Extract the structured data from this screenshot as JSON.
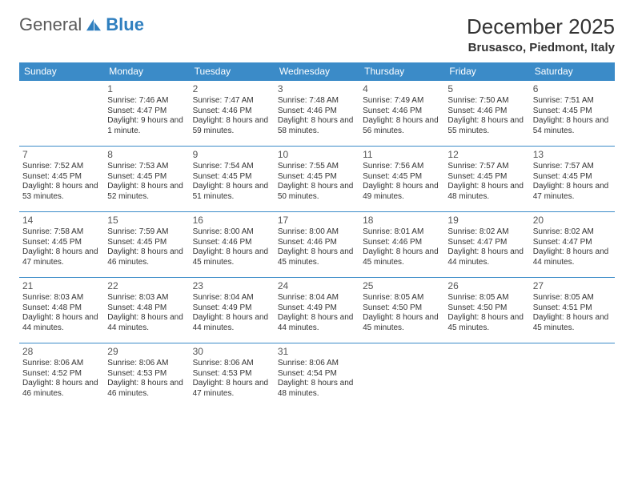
{
  "brand": {
    "text1": "General",
    "text2": "Blue",
    "icon_color": "#2f7fbf"
  },
  "header": {
    "month_title": "December 2025",
    "location": "Brusasco, Piedmont, Italy"
  },
  "style": {
    "header_bg": "#3b8bc8",
    "header_fg": "#ffffff",
    "cell_border": "#3b8bc8",
    "body_fg": "#333333",
    "daynum_fg": "#555555",
    "month_fontsize": 26,
    "location_fontsize": 15,
    "th_fontsize": 12,
    "cell_fontsize": 10
  },
  "days": [
    "Sunday",
    "Monday",
    "Tuesday",
    "Wednesday",
    "Thursday",
    "Friday",
    "Saturday"
  ],
  "weeks": [
    [
      null,
      {
        "n": "1",
        "sr": "Sunrise: 7:46 AM",
        "ss": "Sunset: 4:47 PM",
        "dl": "Daylight: 9 hours and 1 minute."
      },
      {
        "n": "2",
        "sr": "Sunrise: 7:47 AM",
        "ss": "Sunset: 4:46 PM",
        "dl": "Daylight: 8 hours and 59 minutes."
      },
      {
        "n": "3",
        "sr": "Sunrise: 7:48 AM",
        "ss": "Sunset: 4:46 PM",
        "dl": "Daylight: 8 hours and 58 minutes."
      },
      {
        "n": "4",
        "sr": "Sunrise: 7:49 AM",
        "ss": "Sunset: 4:46 PM",
        "dl": "Daylight: 8 hours and 56 minutes."
      },
      {
        "n": "5",
        "sr": "Sunrise: 7:50 AM",
        "ss": "Sunset: 4:46 PM",
        "dl": "Daylight: 8 hours and 55 minutes."
      },
      {
        "n": "6",
        "sr": "Sunrise: 7:51 AM",
        "ss": "Sunset: 4:45 PM",
        "dl": "Daylight: 8 hours and 54 minutes."
      }
    ],
    [
      {
        "n": "7",
        "sr": "Sunrise: 7:52 AM",
        "ss": "Sunset: 4:45 PM",
        "dl": "Daylight: 8 hours and 53 minutes."
      },
      {
        "n": "8",
        "sr": "Sunrise: 7:53 AM",
        "ss": "Sunset: 4:45 PM",
        "dl": "Daylight: 8 hours and 52 minutes."
      },
      {
        "n": "9",
        "sr": "Sunrise: 7:54 AM",
        "ss": "Sunset: 4:45 PM",
        "dl": "Daylight: 8 hours and 51 minutes."
      },
      {
        "n": "10",
        "sr": "Sunrise: 7:55 AM",
        "ss": "Sunset: 4:45 PM",
        "dl": "Daylight: 8 hours and 50 minutes."
      },
      {
        "n": "11",
        "sr": "Sunrise: 7:56 AM",
        "ss": "Sunset: 4:45 PM",
        "dl": "Daylight: 8 hours and 49 minutes."
      },
      {
        "n": "12",
        "sr": "Sunrise: 7:57 AM",
        "ss": "Sunset: 4:45 PM",
        "dl": "Daylight: 8 hours and 48 minutes."
      },
      {
        "n": "13",
        "sr": "Sunrise: 7:57 AM",
        "ss": "Sunset: 4:45 PM",
        "dl": "Daylight: 8 hours and 47 minutes."
      }
    ],
    [
      {
        "n": "14",
        "sr": "Sunrise: 7:58 AM",
        "ss": "Sunset: 4:45 PM",
        "dl": "Daylight: 8 hours and 47 minutes."
      },
      {
        "n": "15",
        "sr": "Sunrise: 7:59 AM",
        "ss": "Sunset: 4:45 PM",
        "dl": "Daylight: 8 hours and 46 minutes."
      },
      {
        "n": "16",
        "sr": "Sunrise: 8:00 AM",
        "ss": "Sunset: 4:46 PM",
        "dl": "Daylight: 8 hours and 45 minutes."
      },
      {
        "n": "17",
        "sr": "Sunrise: 8:00 AM",
        "ss": "Sunset: 4:46 PM",
        "dl": "Daylight: 8 hours and 45 minutes."
      },
      {
        "n": "18",
        "sr": "Sunrise: 8:01 AM",
        "ss": "Sunset: 4:46 PM",
        "dl": "Daylight: 8 hours and 45 minutes."
      },
      {
        "n": "19",
        "sr": "Sunrise: 8:02 AM",
        "ss": "Sunset: 4:47 PM",
        "dl": "Daylight: 8 hours and 44 minutes."
      },
      {
        "n": "20",
        "sr": "Sunrise: 8:02 AM",
        "ss": "Sunset: 4:47 PM",
        "dl": "Daylight: 8 hours and 44 minutes."
      }
    ],
    [
      {
        "n": "21",
        "sr": "Sunrise: 8:03 AM",
        "ss": "Sunset: 4:48 PM",
        "dl": "Daylight: 8 hours and 44 minutes."
      },
      {
        "n": "22",
        "sr": "Sunrise: 8:03 AM",
        "ss": "Sunset: 4:48 PM",
        "dl": "Daylight: 8 hours and 44 minutes."
      },
      {
        "n": "23",
        "sr": "Sunrise: 8:04 AM",
        "ss": "Sunset: 4:49 PM",
        "dl": "Daylight: 8 hours and 44 minutes."
      },
      {
        "n": "24",
        "sr": "Sunrise: 8:04 AM",
        "ss": "Sunset: 4:49 PM",
        "dl": "Daylight: 8 hours and 44 minutes."
      },
      {
        "n": "25",
        "sr": "Sunrise: 8:05 AM",
        "ss": "Sunset: 4:50 PM",
        "dl": "Daylight: 8 hours and 45 minutes."
      },
      {
        "n": "26",
        "sr": "Sunrise: 8:05 AM",
        "ss": "Sunset: 4:50 PM",
        "dl": "Daylight: 8 hours and 45 minutes."
      },
      {
        "n": "27",
        "sr": "Sunrise: 8:05 AM",
        "ss": "Sunset: 4:51 PM",
        "dl": "Daylight: 8 hours and 45 minutes."
      }
    ],
    [
      {
        "n": "28",
        "sr": "Sunrise: 8:06 AM",
        "ss": "Sunset: 4:52 PM",
        "dl": "Daylight: 8 hours and 46 minutes."
      },
      {
        "n": "29",
        "sr": "Sunrise: 8:06 AM",
        "ss": "Sunset: 4:53 PM",
        "dl": "Daylight: 8 hours and 46 minutes."
      },
      {
        "n": "30",
        "sr": "Sunrise: 8:06 AM",
        "ss": "Sunset: 4:53 PM",
        "dl": "Daylight: 8 hours and 47 minutes."
      },
      {
        "n": "31",
        "sr": "Sunrise: 8:06 AM",
        "ss": "Sunset: 4:54 PM",
        "dl": "Daylight: 8 hours and 48 minutes."
      },
      null,
      null,
      null
    ]
  ]
}
